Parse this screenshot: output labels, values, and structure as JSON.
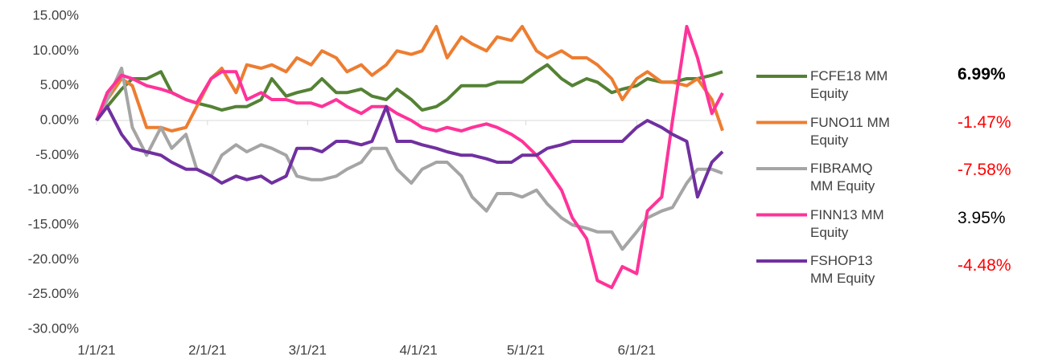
{
  "chart_data": {
    "type": "line",
    "x": [
      "1/1/21",
      "1/4/21",
      "1/8/21",
      "1/11/21",
      "1/15/21",
      "1/19/21",
      "1/22/21",
      "1/26/21",
      "1/29/21",
      "2/2/21",
      "2/5/21",
      "2/9/21",
      "2/12/21",
      "2/16/21",
      "2/19/21",
      "2/23/21",
      "2/26/21",
      "3/2/21",
      "3/5/21",
      "3/9/21",
      "3/12/21",
      "3/16/21",
      "3/19/21",
      "3/23/21",
      "3/26/21",
      "3/30/21",
      "4/2/21",
      "4/6/21",
      "4/9/21",
      "4/13/21",
      "4/16/21",
      "4/20/21",
      "4/23/21",
      "4/27/21",
      "4/30/21",
      "5/4/21",
      "5/7/21",
      "5/11/21",
      "5/14/21",
      "5/18/21",
      "5/21/21",
      "5/25/21",
      "5/28/21",
      "6/1/21",
      "6/4/21",
      "6/8/21",
      "6/11/21",
      "6/15/21",
      "6/18/21",
      "6/22/21",
      "6/25/21"
    ],
    "xlim": [
      "1/1/21",
      "6/25/21"
    ],
    "xticks": [
      "1/1/21",
      "2/1/21",
      "3/1/21",
      "4/1/21",
      "5/1/21",
      "6/1/21"
    ],
    "ylim": [
      -30,
      15
    ],
    "yticks": [
      {
        "value": -30,
        "label": "-30.00%"
      },
      {
        "value": -25,
        "label": "-25.00%"
      },
      {
        "value": -20,
        "label": "-20.00%"
      },
      {
        "value": -15,
        "label": "-15.00%"
      },
      {
        "value": -10,
        "label": "-10.00%"
      },
      {
        "value": -5,
        "label": "-5.00%"
      },
      {
        "value": 0,
        "label": "0.00%"
      },
      {
        "value": 5,
        "label": "5.00%"
      },
      {
        "value": 10,
        "label": "10.00%"
      },
      {
        "value": 15,
        "label": "15.00%"
      }
    ],
    "series": [
      {
        "name": "FCFE18 MM Equity",
        "color": "#548235",
        "end_label": "6.99%",
        "end_label_color": "#000000",
        "end_label_bold": true,
        "values": [
          0,
          2,
          4.5,
          6,
          6,
          7,
          4,
          3,
          2.5,
          2,
          1.5,
          2,
          2,
          3,
          6,
          3.5,
          4,
          4.5,
          6,
          4,
          4,
          4.5,
          3.5,
          3,
          4.5,
          3,
          1.5,
          2,
          3,
          5,
          5,
          5,
          5.5,
          5.5,
          5.5,
          7,
          8,
          6,
          5,
          6,
          5.5,
          4,
          4.5,
          5,
          6,
          5.5,
          5.5,
          6,
          6,
          6.5,
          6.99
        ]
      },
      {
        "name": "FUNO11 MM Equity",
        "color": "#ed7d31",
        "end_label": "-1.47%",
        "end_label_color": "#ff0000",
        "end_label_bold": false,
        "values": [
          0,
          3,
          6,
          5,
          -1,
          -1,
          -1.5,
          -1,
          2,
          6,
          7.5,
          4,
          8,
          7.5,
          8,
          7,
          9,
          8,
          10,
          9,
          7,
          8,
          6.5,
          8,
          10,
          9.5,
          10,
          13.5,
          9,
          12,
          11,
          10,
          12,
          11.5,
          13.5,
          10,
          9,
          10,
          9,
          9,
          8,
          6,
          3,
          6,
          7,
          5.5,
          5.5,
          5,
          6,
          3,
          -1.47
        ]
      },
      {
        "name": "FIBRAMQ MM Equity",
        "color": "#a5a5a5",
        "end_label": "-7.58%",
        "end_label_color": "#ff0000",
        "end_label_bold": false,
        "values": [
          0,
          3,
          7.5,
          -1,
          -5,
          -1,
          -4,
          -2,
          -7,
          -8,
          -5,
          -3.5,
          -4.5,
          -3.5,
          -4,
          -5,
          -8,
          -8.5,
          -8.5,
          -8,
          -7,
          -6,
          -4,
          -4,
          -7,
          -9,
          -7,
          -6,
          -6,
          -8,
          -11,
          -13,
          -10.5,
          -10.5,
          -11,
          -10,
          -12,
          -14,
          -15,
          -15.5,
          -16,
          -16,
          -18.5,
          -16,
          -14,
          -13,
          -12.5,
          -9,
          -7,
          -7,
          -7.58
        ]
      },
      {
        "name": "FINN13 MM Equity",
        "color": "#ff3399",
        "end_label": "3.95%",
        "end_label_color": "#000000",
        "end_label_bold": false,
        "values": [
          0,
          4,
          6.5,
          6,
          5,
          4.5,
          4,
          3,
          2.5,
          6,
          7,
          7,
          3,
          4,
          3,
          3,
          2.5,
          2.5,
          2,
          3,
          2,
          1,
          2,
          2,
          1,
          0,
          -1,
          -1.5,
          -1,
          -1.5,
          -1,
          -0.5,
          -1,
          -2,
          -3,
          -5,
          -7,
          -10,
          -14,
          -17,
          -23,
          -24,
          -21,
          -22,
          -13,
          -11,
          0,
          13.5,
          9,
          1,
          3.95
        ]
      },
      {
        "name": "FSHOP13 MM Equity",
        "color": "#7030a0",
        "end_label": "-4.48%",
        "end_label_color": "#ff0000",
        "end_label_bold": false,
        "values": [
          0,
          2,
          -2,
          -4,
          -4.5,
          -5,
          -6,
          -7,
          -7,
          -8,
          -9,
          -8,
          -8.5,
          -8,
          -9,
          -8,
          -4,
          -4,
          -4.5,
          -3,
          -3,
          -3.5,
          -3,
          2,
          -3,
          -3,
          -3.5,
          -4,
          -4.5,
          -5,
          -5,
          -5.5,
          -6,
          -6,
          -5,
          -5,
          -4,
          -3.5,
          -3,
          -3,
          -3,
          -3,
          -3,
          -1,
          0,
          -1,
          -2,
          -3,
          -11,
          -6,
          -4.48
        ]
      }
    ]
  }
}
